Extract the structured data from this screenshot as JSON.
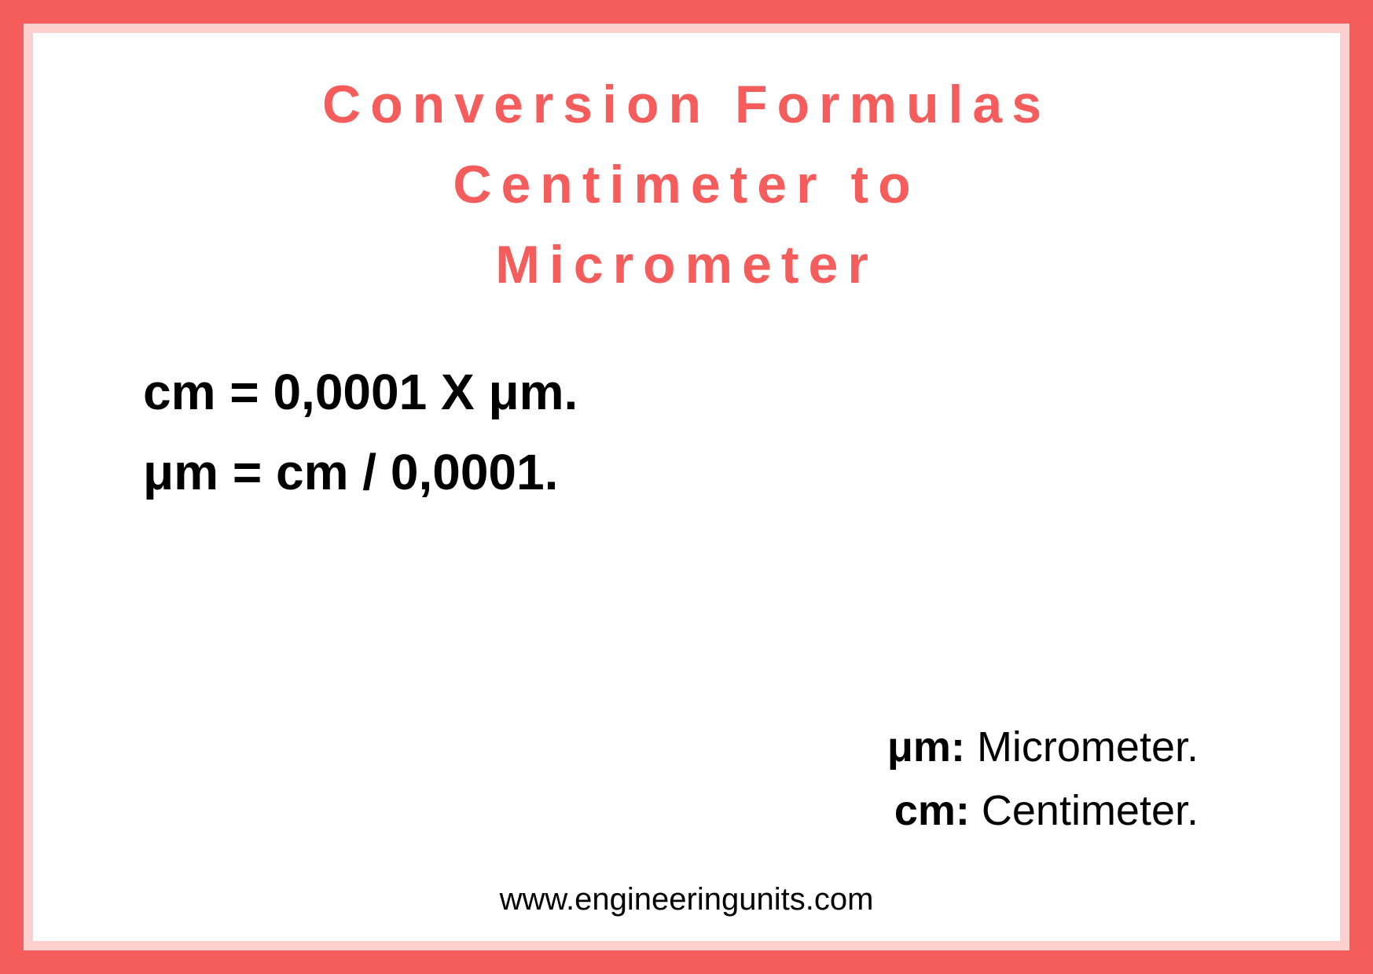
{
  "frame": {
    "outer_color": "#f55c5c",
    "middle_color": "#fcd0cf"
  },
  "title": {
    "line1": "Conversion Formulas",
    "line2": "Centimeter to",
    "line3": "Micrometer",
    "color": "#f55c5c",
    "fontsize": 68
  },
  "formulas": {
    "line1": "cm = 0,0001 X μm.",
    "line2": "μm =  cm / 0,0001.",
    "fontsize": 64,
    "color": "#000000"
  },
  "legend": {
    "items": [
      {
        "symbol": "μm:",
        "meaning": " Micrometer."
      },
      {
        "symbol": "cm:",
        "meaning": " Centimeter."
      }
    ],
    "fontsize": 54,
    "color": "#000000"
  },
  "footer": {
    "text": "www.engineeringunits.com",
    "fontsize": 40,
    "color": "#000000"
  }
}
